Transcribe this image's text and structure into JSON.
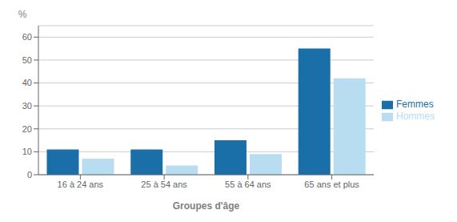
{
  "chart_data": {
    "type": "bar",
    "categories": [
      "16 à 24 ans",
      "25 à 54 ans",
      "55 à 64 ans",
      "65 ans et plus"
    ],
    "series": [
      {
        "name": "Femmes",
        "color": "#1a6fa8",
        "values": [
          11,
          11,
          15,
          55
        ]
      },
      {
        "name": "Hommes",
        "color": "#b8ddf0",
        "values": [
          7,
          4,
          9,
          42
        ]
      }
    ],
    "xlabel": "Groupes d'âge",
    "ylabel": "%",
    "ylim": [
      0,
      65
    ],
    "yticks": [
      0,
      10,
      20,
      30,
      40,
      50,
      60
    ],
    "grid": true,
    "legend": "right"
  }
}
